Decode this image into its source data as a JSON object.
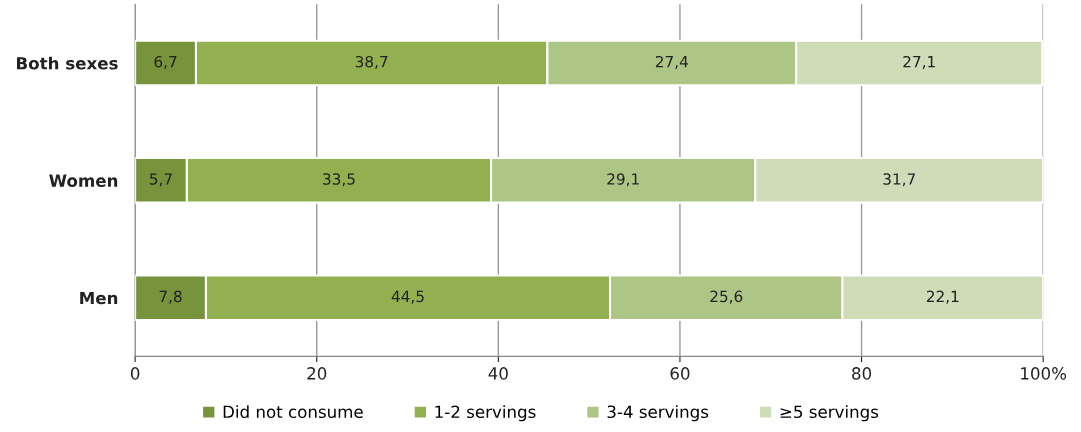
{
  "chart_data": {
    "type": "bar",
    "orientation": "horizontal",
    "stacked": true,
    "categories": [
      "Both sexes",
      "Women",
      "Men"
    ],
    "series": [
      {
        "name": "Did not consume",
        "color": "#77933c",
        "values": [
          6.7,
          5.7,
          7.8
        ],
        "value_labels": [
          "6,7",
          "5,7",
          "7,8"
        ]
      },
      {
        "name": "1-2 servings",
        "color": "#92b050",
        "values": [
          38.7,
          33.5,
          44.5
        ],
        "value_labels": [
          "38,7",
          "33,5",
          "44,5"
        ]
      },
      {
        "name": "3-4 servings",
        "color": "#adc686",
        "values": [
          27.4,
          29.1,
          25.6
        ],
        "value_labels": [
          "27,4",
          "29,1",
          "25,6"
        ]
      },
      {
        "name": "≥5 servings",
        "color": "#cfdcb8",
        "values": [
          27.1,
          31.7,
          22.1
        ],
        "value_labels": [
          "27,1",
          "31,7",
          "22,1"
        ]
      }
    ],
    "xlim": [
      0,
      100
    ],
    "xticks": [
      0,
      20,
      40,
      60,
      80,
      {
        "value": 100,
        "label": "100%"
      }
    ],
    "grid": "x",
    "legend": "bottom"
  }
}
